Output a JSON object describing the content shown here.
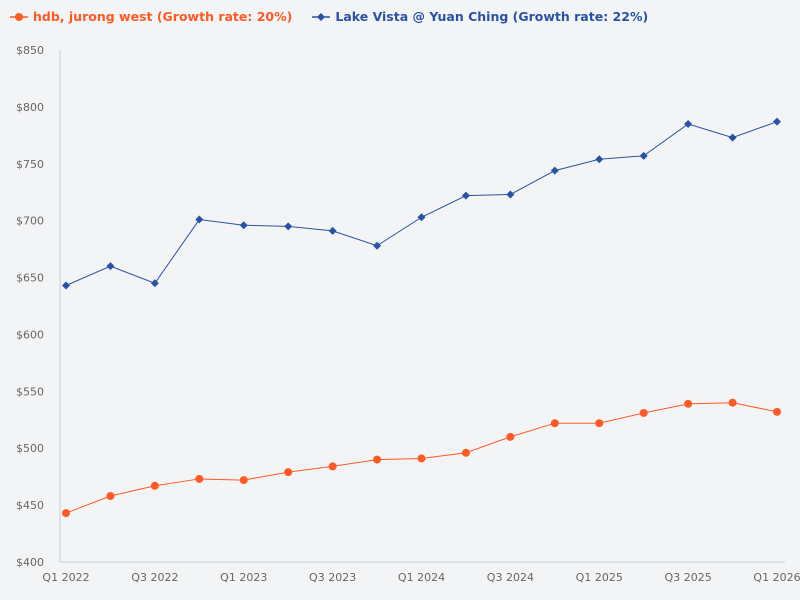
{
  "chart_data": {
    "type": "line",
    "title": "",
    "xlabel": "",
    "ylabel": "",
    "ylim": [
      400,
      850
    ],
    "yticks": [
      "$400",
      "$450",
      "$500",
      "$550",
      "$600",
      "$650",
      "$700",
      "$750",
      "$800",
      "$850"
    ],
    "ytick_values": [
      400,
      450,
      500,
      550,
      600,
      650,
      700,
      750,
      800,
      850
    ],
    "categories": [
      "Q1 2022",
      "Q2 2022",
      "Q3 2022",
      "Q4 2022",
      "Q1 2023",
      "Q2 2023",
      "Q3 2023",
      "Q4 2023",
      "Q1 2024",
      "Q2 2024",
      "Q3 2024",
      "Q4 2024",
      "Q1 2025",
      "Q2 2025",
      "Q3 2025",
      "Q4 2025",
      "Q1 2026"
    ],
    "xtick_labels": [
      "Q1 2022",
      "Q3 2022",
      "Q1 2023",
      "Q3 2023",
      "Q1 2024",
      "Q3 2024",
      "Q1 2025",
      "Q3 2025",
      "Q1 2026"
    ],
    "grid": false,
    "legend_position": "top-left",
    "series": [
      {
        "name": "hdb, jurong west (Growth rate: 20%)",
        "color": "#ff5a26",
        "marker": "circle",
        "values": [
          443,
          458,
          467,
          473,
          472,
          479,
          484,
          490,
          491,
          496,
          510,
          522,
          522,
          531,
          539,
          540,
          532
        ]
      },
      {
        "name": "Lake Vista @ Yuan Ching (Growth rate: 22%)",
        "color": "#2a52a4",
        "marker": "diamond",
        "values": [
          643,
          660,
          645,
          701,
          696,
          695,
          691,
          678,
          703,
          722,
          723,
          744,
          754,
          757,
          785,
          773,
          787
        ]
      }
    ]
  }
}
